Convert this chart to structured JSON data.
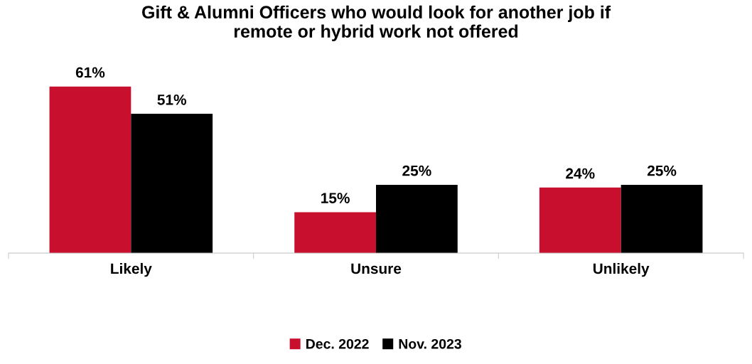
{
  "chart_data": {
    "type": "bar",
    "title": "Gift & Alumni Officers who would look for another job if\nremote or hybrid work not offered",
    "categories": [
      "Likely",
      "Unsure",
      "Unlikely"
    ],
    "series": [
      {
        "name": "Dec. 2022",
        "color": "#c8102e",
        "values": [
          61,
          15,
          24
        ],
        "value_labels": [
          "61%",
          "15%",
          "24%"
        ]
      },
      {
        "name": "Nov. 2023",
        "color": "#000000",
        "values": [
          51,
          25,
          25
        ],
        "value_labels": [
          "51%",
          "25%",
          "25%"
        ]
      }
    ],
    "legend": "bottom",
    "grid": false
  }
}
